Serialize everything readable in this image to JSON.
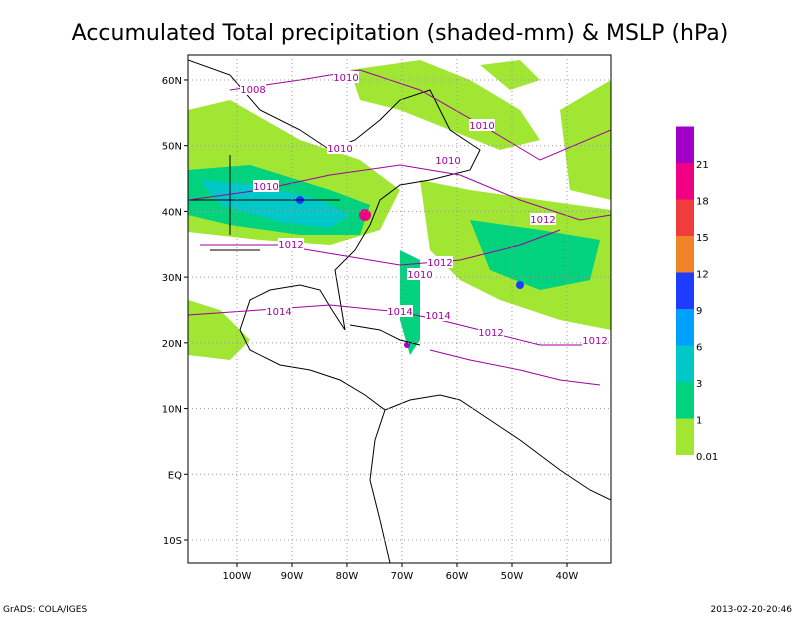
{
  "title": "Accumulated Total precipitation (shaded-mm) & MSLP (hPa)",
  "map": {
    "xlim": [
      -108.9,
      -32
    ],
    "ylim": [
      -13.5,
      63.8
    ],
    "xticks": [
      {
        "value": -100,
        "label": "100W"
      },
      {
        "value": -90,
        "label": "90W"
      },
      {
        "value": -80,
        "label": "80W"
      },
      {
        "value": -70,
        "label": "70W"
      },
      {
        "value": -60,
        "label": "60W"
      },
      {
        "value": -50,
        "label": "50W"
      },
      {
        "value": -40,
        "label": "40W"
      }
    ],
    "yticks": [
      {
        "value": 60,
        "label": "60N"
      },
      {
        "value": 50,
        "label": "50N"
      },
      {
        "value": 40,
        "label": "40N"
      },
      {
        "value": 30,
        "label": "30N"
      },
      {
        "value": 20,
        "label": "20N"
      },
      {
        "value": 10,
        "label": "10N"
      },
      {
        "value": 0,
        "label": "EQ"
      },
      {
        "value": -10,
        "label": "10S"
      }
    ],
    "grid": true,
    "isobar_labels": [
      "1010",
      "1008",
      "1010",
      "1010",
      "1010",
      "1010",
      "1012",
      "1012",
      "1012",
      "1010",
      "1014",
      "1014",
      "1014",
      "1012",
      "1012"
    ]
  },
  "colorbar": {
    "levels": [
      0.01,
      1,
      3,
      6,
      9,
      12,
      15,
      18,
      21
    ],
    "colors": [
      "#a0e632",
      "#00d27d",
      "#00c8c8",
      "#00a0ff",
      "#1e3cff",
      "#f08228",
      "#f03c3c",
      "#f00082",
      "#a000c8"
    ]
  },
  "footer": {
    "left": "GrADS: COLA/IGES",
    "right": "2013-02-20-20:46"
  }
}
